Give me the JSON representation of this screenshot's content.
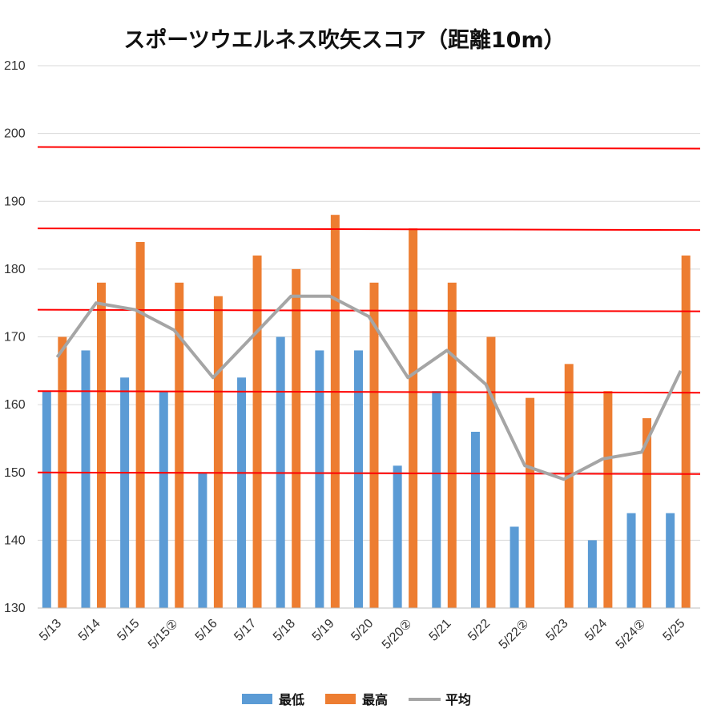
{
  "chart_data": {
    "type": "bar",
    "title": "スポーツウエルネス吹矢スコア（距離10m）",
    "categories": [
      "5/13",
      "5/14",
      "5/15",
      "5/15②",
      "5/16",
      "5/17",
      "5/18",
      "5/19",
      "5/20",
      "5/20②",
      "5/21",
      "5/22",
      "5/22②",
      "5/23",
      "5/24",
      "5/24②",
      "5/25"
    ],
    "series": [
      {
        "name": "最低",
        "type": "bar",
        "color": "#5B9BD5",
        "values": [
          162,
          168,
          164,
          162,
          150,
          164,
          170,
          168,
          168,
          151,
          162,
          156,
          142,
          null,
          140,
          144,
          144
        ]
      },
      {
        "name": "最高",
        "type": "bar",
        "color": "#ED7D31",
        "values": [
          170,
          178,
          184,
          178,
          176,
          182,
          180,
          188,
          178,
          186,
          178,
          170,
          161,
          166,
          162,
          158,
          182
        ]
      },
      {
        "name": "平均",
        "type": "line",
        "color": "#A5A5A5",
        "values": [
          167,
          175,
          174,
          171,
          164,
          170,
          176,
          176,
          173,
          164,
          168,
          163,
          151,
          149,
          152,
          153,
          165
        ]
      }
    ],
    "ylim": [
      130,
      210
    ],
    "yticks": [
      130,
      140,
      150,
      160,
      170,
      180,
      190,
      200,
      210
    ],
    "reference_lines": [
      150,
      162,
      174,
      186,
      198
    ],
    "reference_line_color": "#FF0000",
    "grid": true,
    "legend_position": "bottom"
  }
}
